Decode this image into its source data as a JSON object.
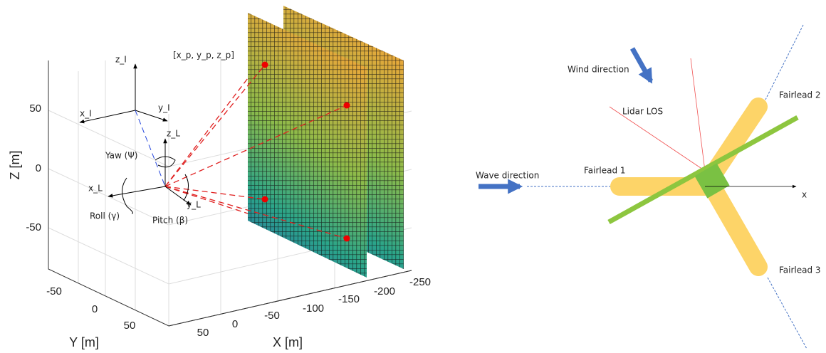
{
  "left_plot": {
    "frames": {
      "z_I": "z_I",
      "x_I": "x_I",
      "y_I": "y_I",
      "z_L": "z_L",
      "x_L": "x_L",
      "y_L": "y_L"
    },
    "angles": {
      "yaw": "Yaw (Ψ)",
      "roll": "Roll (γ)",
      "pitch": "Pitch (β)"
    },
    "point_label": "[x_p, y_p, z_p]",
    "z_axis": {
      "label": "Z [m]",
      "ticks": [
        50,
        0,
        -50
      ]
    },
    "y_axis": {
      "label": "Y [m]",
      "ticks": [
        -50,
        0,
        50
      ]
    },
    "x_axis": {
      "label": "X [m]",
      "ticks": [
        50,
        0,
        -50,
        -100,
        -150,
        -200,
        -250
      ]
    }
  },
  "right_diagram": {
    "wind": "Wind direction",
    "lidar": "Lidar LOS",
    "wave": "Wave direction",
    "fairlead1": "Fairlead 1",
    "fairlead2": "Fairlead 2",
    "fairlead3": "Fairlead 3",
    "x_axis": "x"
  }
}
